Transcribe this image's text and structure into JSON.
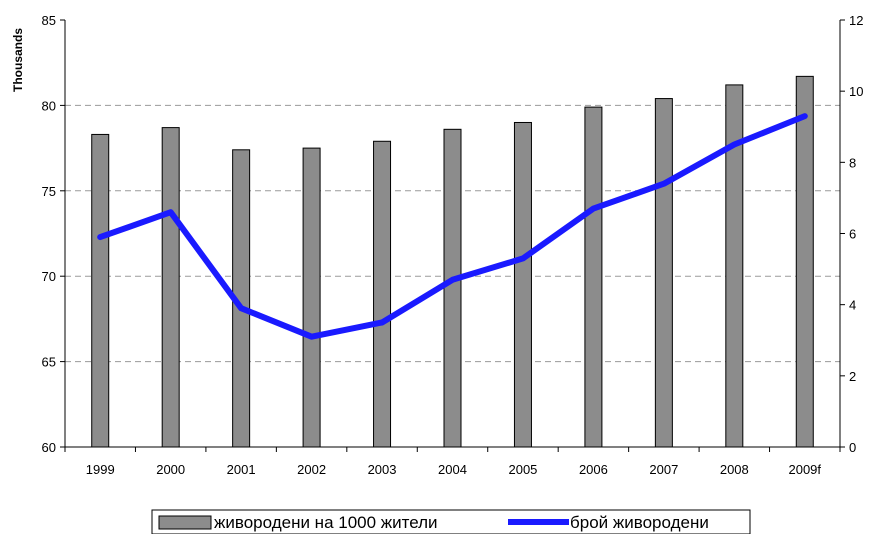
{
  "chart_data": {
    "type": "bar+line",
    "categories": [
      "1999",
      "2000",
      "2001",
      "2002",
      "2003",
      "2004",
      "2005",
      "2006",
      "2007",
      "2008",
      "2009f"
    ],
    "series": [
      {
        "name": "живородени на 1000 жители",
        "type": "bar",
        "axis": "left",
        "color": "#8c8c8c",
        "values": [
          78.3,
          78.7,
          77.4,
          77.5,
          77.9,
          78.6,
          79.0,
          79.9,
          80.4,
          81.2,
          81.7
        ]
      },
      {
        "name": "брой живородени",
        "type": "line",
        "axis": "right",
        "color": "#1a1aff",
        "values": [
          5.9,
          6.6,
          3.9,
          3.1,
          3.5,
          4.7,
          5.3,
          6.7,
          7.4,
          8.5,
          9.3
        ]
      }
    ],
    "y_left": {
      "label": "Thousands",
      "min": 60,
      "max": 85,
      "ticks": [
        "60",
        "65",
        "70",
        "75",
        "80",
        "85"
      ]
    },
    "y_right": {
      "min": 0,
      "max": 12,
      "ticks": [
        "0",
        "2",
        "4",
        "6",
        "8",
        "10",
        "12"
      ]
    },
    "grid": "horizontal dashed",
    "legend": "bottom"
  }
}
